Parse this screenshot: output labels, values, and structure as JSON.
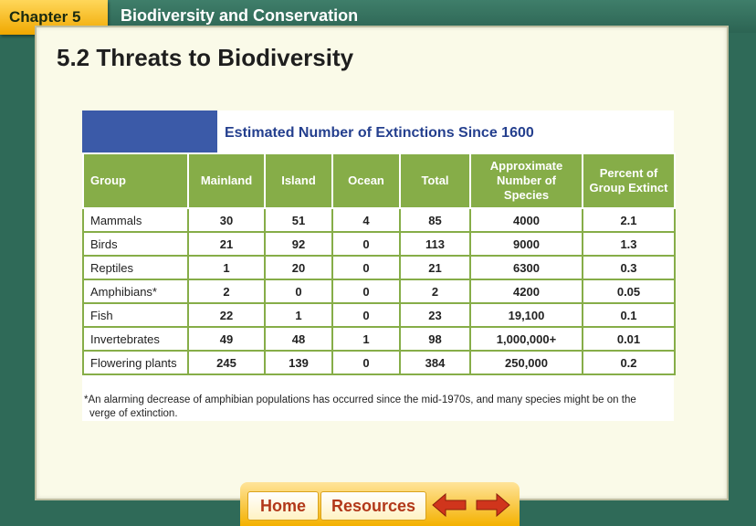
{
  "header": {
    "chapter": "Chapter 5",
    "title": "Biodiversity and Conservation"
  },
  "section_title": "5.2 Threats to Biodiversity",
  "table": {
    "title": "Estimated Number of Extinctions Since 1600",
    "headers": [
      "Group",
      "Mainland",
      "Island",
      "Ocean",
      "Total",
      "Approximate Number of Species",
      "Percent of Group Extinct"
    ],
    "rows": [
      [
        "Mammals",
        "30",
        "51",
        "4",
        "85",
        "4000",
        "2.1"
      ],
      [
        "Birds",
        "21",
        "92",
        "0",
        "113",
        "9000",
        "1.3"
      ],
      [
        "Reptiles",
        "1",
        "20",
        "0",
        "21",
        "6300",
        "0.3"
      ],
      [
        "Amphibians*",
        "2",
        "0",
        "0",
        "2",
        "4200",
        "0.05"
      ],
      [
        "Fish",
        "22",
        "1",
        "0",
        "23",
        "19,100",
        "0.1"
      ],
      [
        "Invertebrates",
        "49",
        "48",
        "1",
        "98",
        "1,000,000+",
        "0.01"
      ],
      [
        "Flowering plants",
        "245",
        "139",
        "0",
        "384",
        "250,000",
        "0.2"
      ]
    ],
    "footnote_line1": "*An alarming decrease of amphibian populations has occurred since the mid-1970s, and many species might be on the",
    "footnote_line2": "verge of extinction."
  },
  "nav": {
    "home_label": "Home",
    "resources_label": "Resources",
    "back_icon": "left-arrow-icon",
    "forward_icon": "right-arrow-icon"
  },
  "colors": {
    "background": "#2f6a58",
    "tab": "#f4b100",
    "table_header": "#86ad48",
    "table_title": "#243f8e",
    "title_block": "#3b5aa8",
    "arrow_red": "#d0351c"
  }
}
